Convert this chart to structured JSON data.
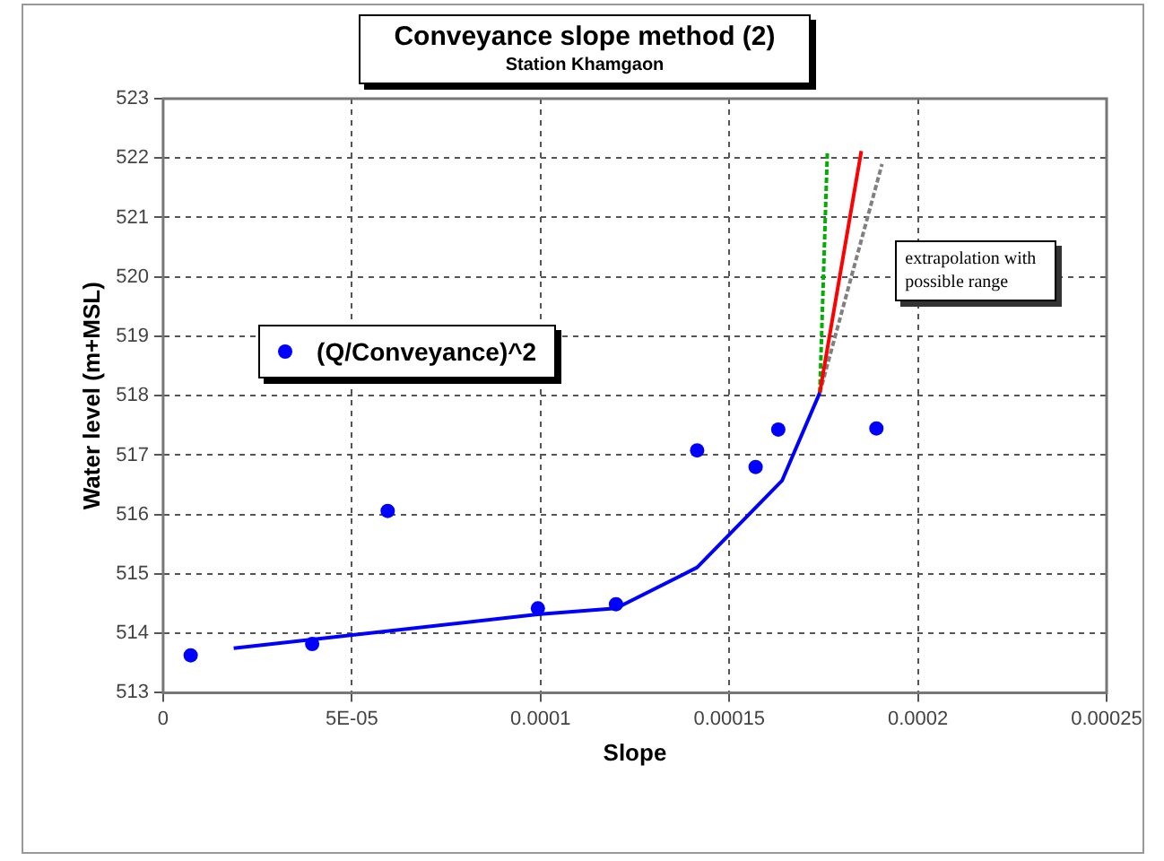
{
  "chart_data": {
    "type": "scatter",
    "title": "Conveyance slope method (2)",
    "subtitle": "Station Khamgaon",
    "xlabel": "Slope",
    "ylabel": "Water level (m+MSL)",
    "annotations": [
      "extrapolation with possible range"
    ],
    "xlim": [
      0,
      0.00025
    ],
    "xticks": [
      0,
      {
        "value": 5e-05,
        "label": "5E-05"
      },
      0.0001,
      0.00015,
      0.0002,
      0.00025
    ],
    "ylim": [
      513,
      523
    ],
    "yticks": [
      513,
      514,
      515,
      516,
      517,
      518,
      519,
      520,
      521,
      522,
      523
    ],
    "grid": true,
    "legend": "left",
    "series": [
      {
        "name": "(Q/Conveyance)^2",
        "marker": "circle",
        "color": "#0000ff",
        "x": [
          7.3e-06,
          3.95e-05,
          5.95e-05,
          9.93e-05,
          0.00012,
          0.0001415,
          0.000157,
          0.000163,
          0.000189
        ],
        "values": [
          513.63,
          513.82,
          516.06,
          514.42,
          514.49,
          517.08,
          516.8,
          517.43,
          517.45
        ]
      },
      {
        "type": "line",
        "marker": "none",
        "color": "#0000ff",
        "line_style": "solid",
        "x": [
          1.87e-05,
          9.92e-05,
          0.00012,
          0.0001415,
          0.000164,
          0.000174
        ],
        "values": [
          513.75,
          514.32,
          514.42,
          515.11,
          516.57,
          518.05
        ]
      },
      {
        "type": "line",
        "marker": "none",
        "color": "#ff0000",
        "line_style": "solid",
        "x": [
          0.000174,
          0.000185
        ],
        "values": [
          518.05,
          522.12
        ]
      },
      {
        "type": "line",
        "marker": "none",
        "color": "#00b000",
        "line_style": "dotted",
        "x": [
          0.000174,
          0.000176
        ],
        "values": [
          518.05,
          522.1
        ]
      },
      {
        "type": "line",
        "marker": "none",
        "color": "#808080",
        "line_style": "dotted",
        "x": [
          0.000174,
          0.0001905
        ],
        "values": [
          518.05,
          521.9
        ]
      }
    ]
  }
}
